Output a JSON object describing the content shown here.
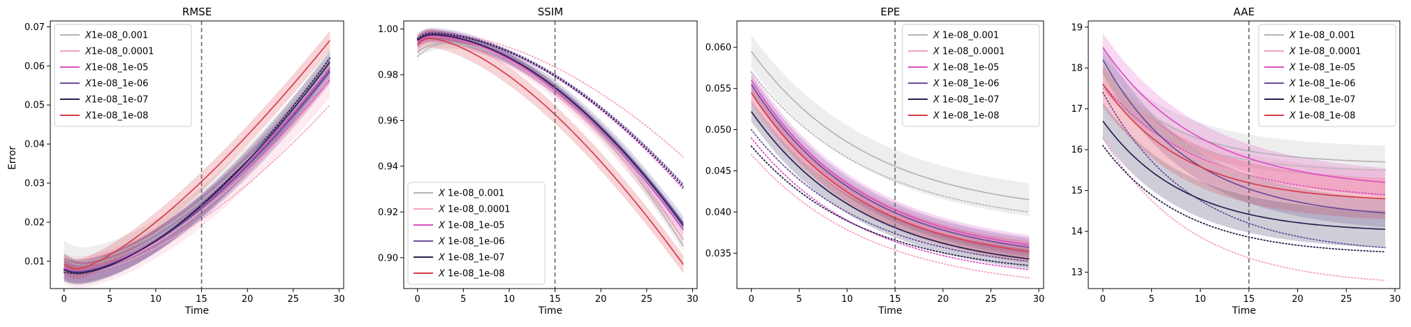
{
  "figure": {
    "shared_ylabel": "Error"
  },
  "colors": {
    "1e-08_0.001": "#b7b2b2",
    "1e-08_0.0001": "#f4a3c0",
    "1e-08_1e-05": "#dd4fc4",
    "1e-08_1e-06": "#6a4c9c",
    "1e-08_1e-07": "#24204f",
    "1e-08_1e-08": "#d93a4a"
  },
  "chart_data": [
    {
      "type": "line",
      "title": "RMSE",
      "xlabel": "Time",
      "ylabel": "Error",
      "xlim": [
        -1.5,
        30.5
      ],
      "ylim": [
        0.003,
        0.0715
      ],
      "xticks": [
        "0",
        "5",
        "10",
        "15",
        "20",
        "25",
        "30"
      ],
      "yticks": [
        "0.01",
        "0.02",
        "0.03",
        "0.04",
        "0.05",
        "0.06",
        "0.07"
      ],
      "vline_x": 15,
      "legend": {
        "position": "upper-left"
      },
      "series": [
        {
          "name": "X1e-08_0.001",
          "key": "1e-08_0.001",
          "shape": "ushape",
          "x0": 0,
          "x1": 29,
          "min_at": 2.0,
          "start": 0.0118,
          "min": 0.01,
          "end": 0.06,
          "power": 1.6,
          "band": 0.0035,
          "dot": {
            "start": 0.0105,
            "min": 0.009,
            "end": 0.058
          }
        },
        {
          "name": "X1e-08_0.0001",
          "key": "1e-08_0.0001",
          "shape": "ushape",
          "x0": 0,
          "x1": 29,
          "min_at": 1.5,
          "start": 0.008,
          "min": 0.0072,
          "end": 0.056,
          "power": 1.6,
          "band": 0.004,
          "dot": {
            "start": 0.0075,
            "min": 0.0068,
            "end": 0.05
          }
        },
        {
          "name": "X1e-08_1e-05",
          "key": "1e-08_1e-05",
          "shape": "ushape",
          "x0": 0,
          "x1": 29,
          "min_at": 1.5,
          "start": 0.0085,
          "min": 0.0074,
          "end": 0.0595,
          "power": 1.6,
          "band": 0.003,
          "dot": {
            "start": 0.008,
            "min": 0.007,
            "end": 0.0565
          }
        },
        {
          "name": "X1e-08_1e-06",
          "key": "1e-08_1e-06",
          "shape": "ushape",
          "x0": 0,
          "x1": 29,
          "min_at": 1.5,
          "start": 0.008,
          "min": 0.0073,
          "end": 0.0585,
          "power": 1.6,
          "band": 0.003,
          "dot": {
            "start": 0.0078,
            "min": 0.007,
            "end": 0.059
          }
        },
        {
          "name": "X1e-08_1e-07",
          "key": "1e-08_1e-07",
          "shape": "ushape",
          "x0": 0,
          "x1": 29,
          "min_at": 1.5,
          "start": 0.0078,
          "min": 0.007,
          "end": 0.061,
          "power": 1.6,
          "band": 0.003,
          "dot": {
            "start": 0.0072,
            "min": 0.0068,
            "end": 0.062
          }
        },
        {
          "name": "X1e-08_1e-08",
          "key": "1e-08_1e-08",
          "shape": "ushape",
          "x0": 0,
          "x1": 29,
          "min_at": 1.5,
          "start": 0.0092,
          "min": 0.008,
          "end": 0.0665,
          "power": 1.35,
          "band": 0.0025,
          "dot": null
        }
      ]
    },
    {
      "type": "line",
      "title": "SSIM",
      "xlabel": "Time",
      "ylabel": "",
      "xlim": [
        -1.5,
        30.5
      ],
      "ylim": [
        0.8865,
        1.0035
      ],
      "xticks": [
        "0",
        "5",
        "10",
        "15",
        "20",
        "25",
        "30"
      ],
      "yticks": [
        "0.90",
        "0.92",
        "0.94",
        "0.96",
        "0.98",
        "1.00"
      ],
      "vline_x": 15,
      "legend": {
        "position": "lower-left"
      },
      "series": [
        {
          "name": "X 1e-08_0.001",
          "key": "1e-08_0.001",
          "shape": "ushape",
          "x0": 0,
          "x1": 29,
          "min_at": 3.0,
          "start": 0.99,
          "min": 0.994,
          "end": 0.905,
          "power": 1.9,
          "band": 0.0025,
          "dot": {
            "start": 0.988,
            "min": 0.9935,
            "end": 0.908
          }
        },
        {
          "name": "X 1e-08_0.0001",
          "key": "1e-08_0.0001",
          "shape": "ushape",
          "x0": 0,
          "x1": 29,
          "min_at": 1.5,
          "start": 0.995,
          "min": 0.997,
          "end": 0.908,
          "power": 1.8,
          "band": 0.003,
          "dot": {
            "start": 0.996,
            "min": 0.9985,
            "end": 0.944
          }
        },
        {
          "name": "X 1e-08_1e-05",
          "key": "1e-08_1e-05",
          "shape": "ushape",
          "x0": 0,
          "x1": 29,
          "min_at": 1.5,
          "start": 0.994,
          "min": 0.997,
          "end": 0.912,
          "power": 1.8,
          "band": 0.0025,
          "dot": {
            "start": 0.995,
            "min": 0.998,
            "end": 0.93
          }
        },
        {
          "name": "X 1e-08_1e-06",
          "key": "1e-08_1e-06",
          "shape": "ushape",
          "x0": 0,
          "x1": 29,
          "min_at": 1.5,
          "start": 0.995,
          "min": 0.9975,
          "end": 0.915,
          "power": 1.8,
          "band": 0.003,
          "dot": {
            "start": 0.996,
            "min": 0.9985,
            "end": 0.932
          }
        },
        {
          "name": "X 1e-08_1e-07",
          "key": "1e-08_1e-07",
          "shape": "ushape",
          "x0": 0,
          "x1": 29,
          "min_at": 1.5,
          "start": 0.995,
          "min": 0.9975,
          "end": 0.914,
          "power": 1.8,
          "band": 0.002,
          "dot": {
            "start": 0.9955,
            "min": 0.998,
            "end": 0.931
          }
        },
        {
          "name": "X 1e-08_1e-08",
          "key": "1e-08_1e-08",
          "shape": "ushape",
          "x0": 0,
          "x1": 29,
          "min_at": 1.2,
          "start": 0.993,
          "min": 0.996,
          "end": 0.897,
          "power": 1.55,
          "band": 0.004,
          "dot": null
        }
      ]
    },
    {
      "type": "line",
      "title": "EPE",
      "xlabel": "Time",
      "ylabel": "",
      "xlim": [
        -1.5,
        30.5
      ],
      "ylim": [
        0.0307,
        0.0632
      ],
      "xticks": [
        "0",
        "5",
        "10",
        "15",
        "20",
        "25",
        "30"
      ],
      "yticks": [
        "0.035",
        "0.040",
        "0.045",
        "0.050",
        "0.055",
        "0.060"
      ],
      "vline_x": 15,
      "legend": {
        "position": "upper-right"
      },
      "series": [
        {
          "name": "X 1e-08_0.001",
          "key": "1e-08_0.001",
          "shape": "decay",
          "x0": 0,
          "x1": 29,
          "start": 0.0595,
          "end": 0.0415,
          "rate": 0.08,
          "band": 0.002,
          "dot": {
            "start": 0.057,
            "end": 0.04
          }
        },
        {
          "name": "X 1e-08_0.0001",
          "key": "1e-08_0.0001",
          "shape": "decay",
          "x0": 0,
          "x1": 29,
          "start": 0.0535,
          "end": 0.0352,
          "rate": 0.08,
          "band": 0.0015,
          "dot": {
            "start": 0.047,
            "end": 0.032
          }
        },
        {
          "name": "X 1e-08_1e-05",
          "key": "1e-08_1e-05",
          "shape": "decay",
          "x0": 0,
          "x1": 29,
          "start": 0.056,
          "end": 0.036,
          "rate": 0.085,
          "band": 0.0012,
          "dot": {
            "start": 0.049,
            "end": 0.033
          }
        },
        {
          "name": "X 1e-08_1e-06",
          "key": "1e-08_1e-06",
          "shape": "decay",
          "x0": 0,
          "x1": 29,
          "start": 0.0555,
          "end": 0.0357,
          "rate": 0.085,
          "band": 0.0012,
          "dot": {
            "start": 0.05,
            "end": 0.034
          }
        },
        {
          "name": "X 1e-08_1e-07",
          "key": "1e-08_1e-07",
          "shape": "decay",
          "x0": 0,
          "x1": 29,
          "start": 0.0522,
          "end": 0.0343,
          "rate": 0.085,
          "band": 0.0012,
          "dot": {
            "start": 0.048,
            "end": 0.0335
          }
        },
        {
          "name": "X 1e-08_1e-08",
          "key": "1e-08_1e-08",
          "shape": "decay",
          "x0": 0,
          "x1": 29,
          "start": 0.0545,
          "end": 0.0352,
          "rate": 0.085,
          "band": 0.0012,
          "dot": null
        }
      ]
    },
    {
      "type": "line",
      "title": "AAE",
      "xlabel": "Time",
      "ylabel": "",
      "xlim": [
        -1.5,
        30.5
      ],
      "ylim": [
        12.6,
        19.15
      ],
      "xticks": [
        "0",
        "5",
        "10",
        "15",
        "20",
        "25",
        "30"
      ],
      "yticks": [
        "13",
        "14",
        "15",
        "16",
        "17",
        "18",
        "19"
      ],
      "vline_x": 15,
      "legend": {
        "position": "upper-right"
      },
      "series": [
        {
          "name": "X 1e-08_0.001",
          "key": "1e-08_0.001",
          "shape": "decay",
          "x0": 0,
          "x1": 29,
          "start": 17.9,
          "end": 15.7,
          "rate": 0.13,
          "band": 0.4,
          "dot": {
            "start": 17.5,
            "end": 15.5
          }
        },
        {
          "name": "X 1e-08_0.0001",
          "key": "1e-08_0.0001",
          "shape": "decay",
          "x0": 0,
          "x1": 29,
          "start": 17.5,
          "end": 15.0,
          "rate": 0.11,
          "band": 0.5,
          "dot": {
            "start": 16.3,
            "end": 12.8
          }
        },
        {
          "name": "X 1e-08_1e-05",
          "key": "1e-08_1e-05",
          "shape": "decay",
          "x0": 0,
          "x1": 29,
          "start": 18.5,
          "end": 15.2,
          "rate": 0.1,
          "band": 0.35,
          "dot": {
            "start": 17.6,
            "end": 14.9
          }
        },
        {
          "name": "X 1e-08_1e-06",
          "key": "1e-08_1e-06",
          "shape": "decay",
          "x0": 0,
          "x1": 29,
          "start": 18.2,
          "end": 14.45,
          "rate": 0.11,
          "band": 0.35,
          "dot": {
            "start": 17.4,
            "end": 13.6
          }
        },
        {
          "name": "X 1e-08_1e-07",
          "key": "1e-08_1e-07",
          "shape": "decay",
          "x0": 0,
          "x1": 29,
          "start": 16.7,
          "end": 14.05,
          "rate": 0.12,
          "band": 0.45,
          "dot": {
            "start": 16.1,
            "end": 13.5
          }
        },
        {
          "name": "X 1e-08_1e-08",
          "key": "1e-08_1e-08",
          "shape": "decay",
          "x0": 0,
          "x1": 29,
          "start": 17.6,
          "end": 14.8,
          "rate": 0.12,
          "band": 0.5,
          "dot": null
        }
      ]
    }
  ]
}
